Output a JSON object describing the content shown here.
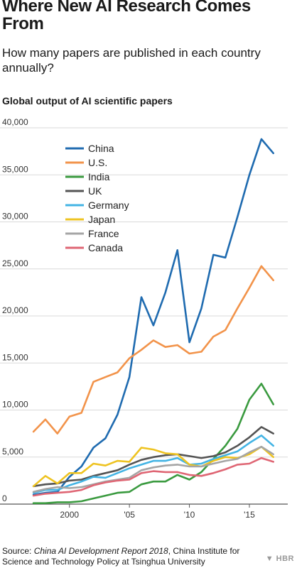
{
  "header": {
    "title": "Where New AI Research Comes From",
    "subtitle": "How many papers are published in each country annually?"
  },
  "footer": {
    "source_prefix": "Source: ",
    "source_title": "China AI Development Report 2018",
    "source_rest": ", China Institute for Science and Technology Policy at Tsinghua University",
    "logo": "HBR",
    "logo_icon": "hbr-shield-icon"
  },
  "chart_data": {
    "type": "line",
    "title": "Global output of AI scientific papers",
    "xlabel": "",
    "ylabel": "",
    "x": [
      1997,
      1998,
      1999,
      2000,
      2001,
      2002,
      2003,
      2004,
      2005,
      2006,
      2007,
      2008,
      2009,
      2010,
      2011,
      2012,
      2013,
      2014,
      2015,
      2016,
      2017
    ],
    "xlim": [
      1996.7,
      2018.2
    ],
    "ylim": [
      0,
      40000
    ],
    "yticks": [
      0,
      5000,
      10000,
      15000,
      20000,
      25000,
      30000,
      35000,
      40000
    ],
    "ytick_labels": [
      "0",
      "5,000",
      "10,000",
      "15,000",
      "20,000",
      "25,000",
      "30,000",
      "35,000",
      "40,000"
    ],
    "xticks": [
      2000,
      2005,
      2010,
      2015
    ],
    "xtick_labels": [
      "2000",
      "'05",
      "'10",
      "'15"
    ],
    "grid": true,
    "legend": "top-left",
    "series": [
      {
        "name": "China",
        "color": "#1f6bb0",
        "values": [
          1000,
          1200,
          1300,
          2900,
          4000,
          6000,
          7000,
          9500,
          13500,
          22000,
          19000,
          22500,
          27000,
          17200,
          20800,
          26500,
          26200,
          30500,
          35000,
          38800,
          37300
        ]
      },
      {
        "name": "U.S.",
        "color": "#f2934a",
        "values": [
          7700,
          9000,
          7500,
          9300,
          9700,
          13000,
          13500,
          14000,
          15500,
          16400,
          17400,
          16700,
          16900,
          16000,
          16200,
          17800,
          18500,
          20800,
          23000,
          25300,
          23800
        ]
      },
      {
        "name": "India",
        "color": "#3a9a3f",
        "values": [
          100,
          100,
          200,
          200,
          300,
          600,
          900,
          1200,
          1300,
          2100,
          2400,
          2400,
          3100,
          2600,
          3400,
          4800,
          6200,
          8000,
          11100,
          12800,
          10600
        ]
      },
      {
        "name": "UK",
        "color": "#545454",
        "values": [
          1900,
          2100,
          2200,
          2500,
          2600,
          3000,
          3300,
          3600,
          4200,
          4700,
          5000,
          5200,
          5300,
          5100,
          4900,
          5100,
          5500,
          6200,
          7100,
          8200,
          7500
        ]
      },
      {
        "name": "Germany",
        "color": "#43b4e4",
        "values": [
          1200,
          1500,
          1500,
          2000,
          2400,
          2900,
          2800,
          3300,
          3800,
          4200,
          4600,
          4600,
          4900,
          4200,
          4300,
          4800,
          5200,
          5600,
          6500,
          7300,
          6200
        ]
      },
      {
        "name": "Japan",
        "color": "#eec321",
        "values": [
          1900,
          3000,
          2200,
          3300,
          3300,
          4300,
          4100,
          4600,
          4500,
          6000,
          5800,
          5400,
          5300,
          4200,
          4000,
          4600,
          5000,
          4900,
          5300,
          6100,
          5000
        ]
      },
      {
        "name": "France",
        "color": "#a5a5a5",
        "values": [
          1300,
          1600,
          1800,
          1700,
          1800,
          2100,
          2400,
          2600,
          2800,
          3600,
          3900,
          4100,
          4200,
          4000,
          4000,
          4300,
          4600,
          4800,
          5500,
          6100,
          5300
        ]
      },
      {
        "name": "Canada",
        "color": "#df6674",
        "values": [
          900,
          1100,
          1200,
          1300,
          1500,
          2000,
          2300,
          2500,
          2600,
          3300,
          3500,
          3400,
          3400,
          3100,
          3000,
          3300,
          3700,
          4200,
          4300,
          4900,
          4500
        ]
      }
    ]
  }
}
